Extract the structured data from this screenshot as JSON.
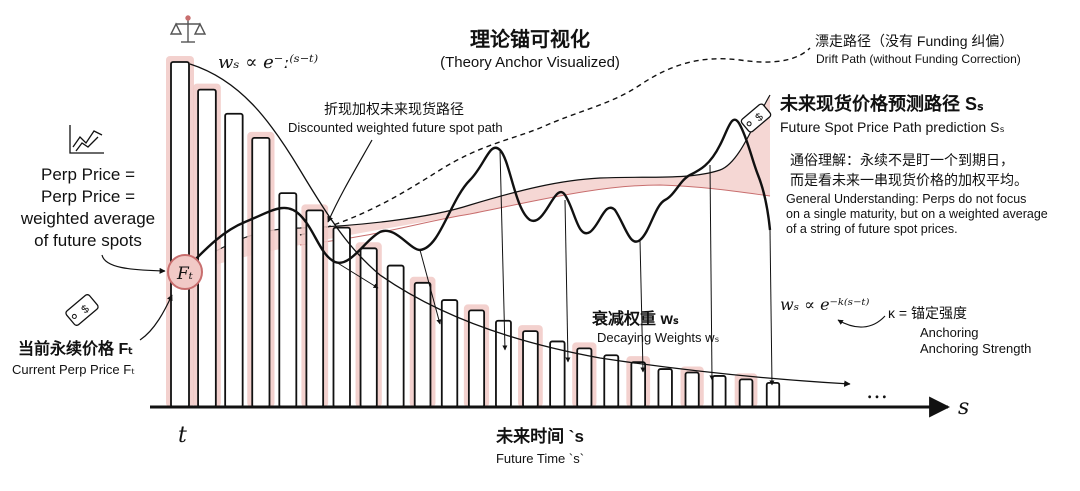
{
  "title": {
    "zh": "理论锚可视化",
    "en": "(Theory Anchor Visualized)"
  },
  "formulas": {
    "top_weight": "wₛ ∝ e⁻ː⁽ˢ⁻ᵗ⁾",
    "decay_weight": "wₛ ∝ e⁻ᵏ⁽ˢ⁻ᵗ⁾",
    "kappa_def": "κ = 锚定强度",
    "kappa_en_1": "Anchoring",
    "kappa_en_2": "Anchoring Strength"
  },
  "drift": {
    "zh": "漂走路径（没有 Funding 纠偏）",
    "en": "Drift Path (without Funding Correction)"
  },
  "future_path": {
    "zh": "未来现货价格预测路径 Sₛ",
    "en": "Future Spot Price Path prediction  Sₛ"
  },
  "discounted": {
    "zh": "折现加权未来现货路径",
    "en": "Discounted weighted future spot path"
  },
  "general": {
    "zh_1": "通俗理解：永续不是盯一个到期日，",
    "zh_2": "而是看未来一串现货价格的加权平均。",
    "en_1": "General Understanding: Perps do not focus",
    "en_2": "on a single maturity, but on a weighted average",
    "en_3": "of a string of future spot prices."
  },
  "perp_def": {
    "l1": "Perp Price =",
    "l2": "Perp Price =",
    "l3": "weighted average",
    "l4": "of future spots"
  },
  "current_price": {
    "zh": "当前永续价格 Fₜ",
    "en": "Current Perp Price Fₜ",
    "node": "Fₜ"
  },
  "decaying": {
    "zh": "衰减权重 wₛ",
    "en": "Decaying Weights wₛ"
  },
  "axis": {
    "t": "t",
    "s": "s",
    "ellipsis": "…",
    "zh": "未来时间 `s",
    "en": "Future Time `s`"
  },
  "icons": [
    "balance-scale-icon",
    "chart-icon",
    "price-tag-icon"
  ],
  "colors": {
    "ink": "#111111",
    "accent": "#c86e6e",
    "fill": "#f1c9c6",
    "fill_dark": "#e7aaa6"
  },
  "chart_data": {
    "type": "bar",
    "bar_values": [
      1.0,
      0.92,
      0.85,
      0.78,
      0.62,
      0.57,
      0.52,
      0.46,
      0.41,
      0.36,
      0.31,
      0.28,
      0.25,
      0.22,
      0.19,
      0.17,
      0.15,
      0.13,
      0.11,
      0.1,
      0.09,
      0.08,
      0.07
    ],
    "title": "理论锚可视化"
  }
}
